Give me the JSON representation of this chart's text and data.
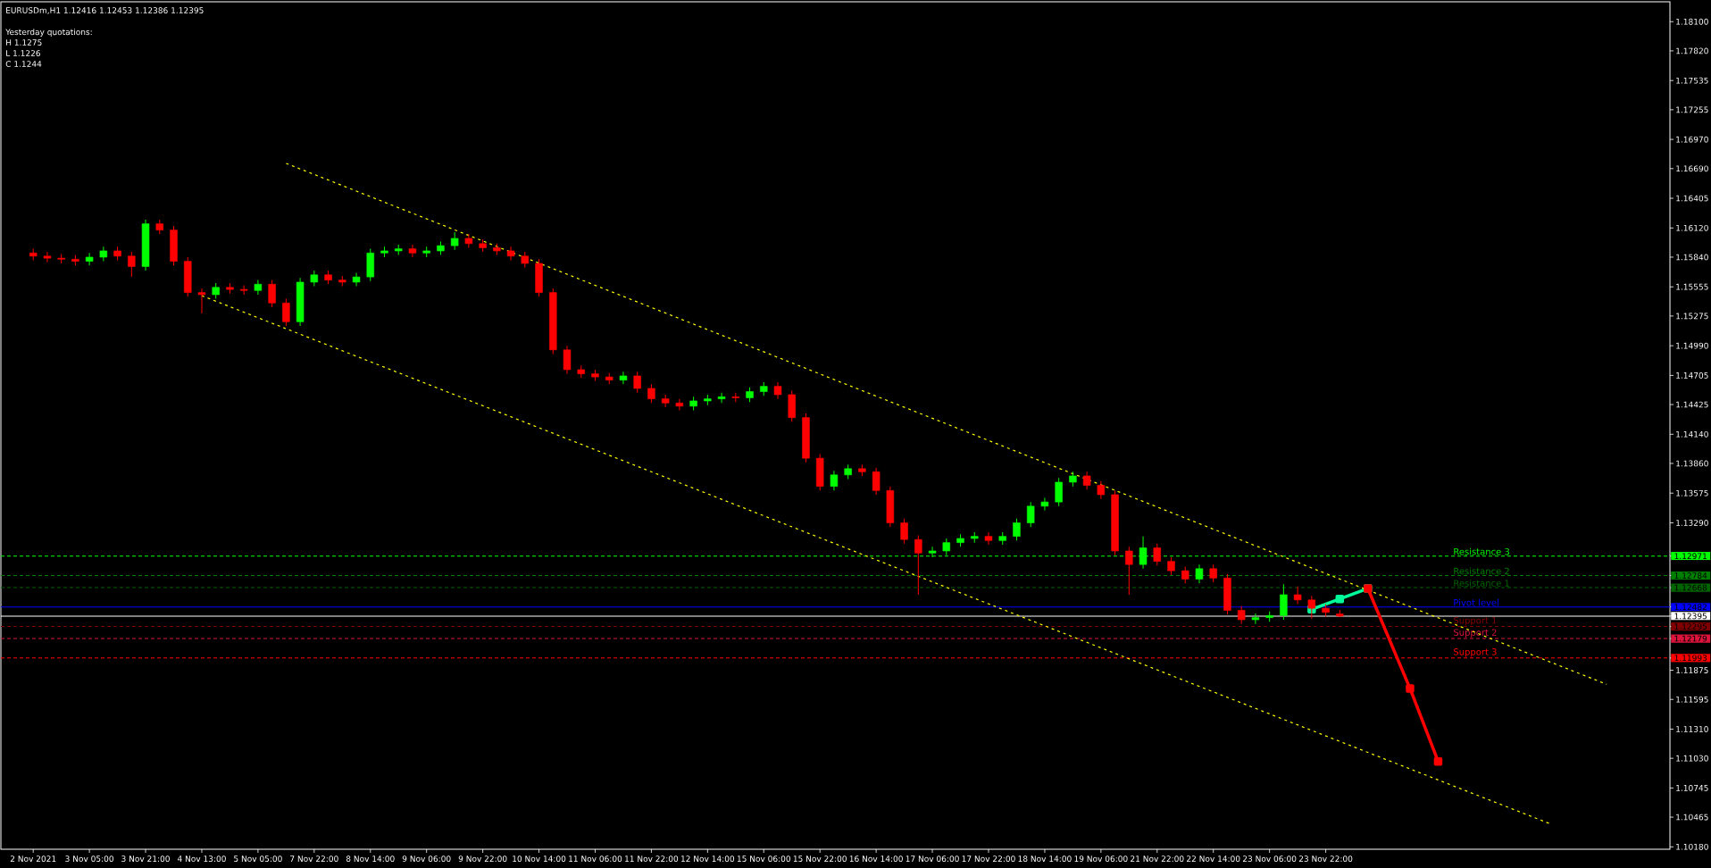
{
  "chart_data": {
    "type": "candlestick",
    "title": "EURUSDm,H1  1.12416 1.12453 1.12386 1.12395",
    "annotations": [
      "Yesterday quotations:",
      "H 1.1275",
      "L 1.1226",
      "C 1.1244"
    ],
    "categories": [
      "2 Nov 2021",
      null,
      null,
      null,
      "3 Nov 05:00",
      null,
      null,
      null,
      "3 Nov 21:00",
      null,
      null,
      null,
      "4 Nov 13:00",
      null,
      null,
      null,
      "5 Nov 05:00",
      null,
      null,
      null,
      "7 Nov 22:00",
      null,
      null,
      null,
      "8 Nov 14:00",
      null,
      null,
      null,
      "9 Nov 06:00",
      null,
      null,
      null,
      "9 Nov 22:00",
      null,
      null,
      null,
      "10 Nov 14:00",
      null,
      null,
      null,
      "11 Nov 06:00",
      null,
      null,
      null,
      "11 Nov 22:00",
      null,
      null,
      null,
      "12 Nov 14:00",
      null,
      null,
      null,
      "15 Nov 06:00",
      null,
      null,
      null,
      "15 Nov 22:00",
      null,
      null,
      null,
      "16 Nov 14:00",
      null,
      null,
      null,
      "17 Nov 06:00",
      null,
      null,
      null,
      "17 Nov 22:00",
      null,
      null,
      null,
      "18 Nov 14:00",
      null,
      null,
      null,
      "19 Nov 06:00",
      null,
      null,
      null,
      "21 Nov 22:00",
      null,
      null,
      null,
      "22 Nov 14:00",
      null,
      null,
      null,
      "23 Nov 06:00",
      null,
      null,
      null,
      "23 Nov 22:00",
      null,
      null,
      null,
      null,
      null,
      null,
      null,
      null,
      null,
      null,
      null,
      null,
      null,
      null,
      null,
      null,
      null,
      null,
      null,
      null,
      null,
      null,
      null,
      null
    ],
    "colors": [
      "#ff0000",
      "#ff0000",
      "#ff0000",
      "#ff0000",
      "#00ff00",
      "#00ff00",
      "#ff0000",
      "#ff0000",
      "#00ff00",
      "#ff0000",
      "#ff0000",
      "#ff0000",
      "#ff0000",
      "#00ff00",
      "#ff0000",
      "#ff0000",
      "#00ff00",
      "#ff0000",
      "#ff0000",
      "#00ff00",
      "#00ff00",
      "#ff0000",
      "#ff0000",
      "#00ff00",
      "#00ff00",
      "#00ff00",
      "#00ff00",
      "#ff0000",
      "#00ff00",
      "#00ff00",
      "#00ff00",
      "#ff0000",
      "#ff0000",
      "#ff0000",
      "#ff0000",
      "#ff0000",
      "#ff0000",
      "#ff0000",
      "#ff0000",
      "#ff0000",
      "#ff0000",
      "#ff0000",
      "#00ff00",
      "#ff0000",
      "#ff0000",
      "#ff0000",
      "#ff0000",
      "#00ff00",
      "#00ff00",
      "#00ff00",
      "#ff0000",
      "#00ff00",
      "#00ff00",
      "#ff0000",
      "#ff0000",
      "#ff0000",
      "#ff0000",
      "#00ff00",
      "#00ff00",
      "#ff0000",
      "#ff0000",
      "#ff0000",
      "#ff0000",
      "#ff0000",
      "#00ff00",
      "#00ff00",
      "#00ff00",
      "#00ff00",
      "#ff0000",
      "#00ff00",
      "#00ff00",
      "#00ff00",
      "#00ff00",
      "#00ff00",
      "#00ff00",
      "#ff0000",
      "#ff0000",
      "#ff0000",
      "#ff0000",
      "#00ff00",
      "#ff0000",
      "#ff0000",
      "#ff0000",
      "#00ff00",
      "#ff0000",
      "#ff0000",
      "#ff0000",
      "#00ff00",
      "#00ff00",
      "#00ff00",
      "#ff0000",
      "#ff0000",
      "#ff0000",
      "#ff0000",
      null,
      null,
      null,
      null,
      null,
      null,
      null,
      null,
      null,
      null,
      null,
      null,
      null,
      null,
      null,
      null,
      null,
      null,
      null,
      null,
      null,
      null,
      null
    ],
    "ohlc": [
      [
        1.1588,
        1.1592,
        1.1581,
        1.1585
      ],
      [
        1.1585,
        1.1589,
        1.1579,
        1.1583
      ],
      [
        1.1583,
        1.1587,
        1.1578,
        1.1582
      ],
      [
        1.1582,
        1.1586,
        1.1576,
        1.158
      ],
      [
        1.158,
        1.1588,
        1.1576,
        1.1584
      ],
      [
        1.1584,
        1.1594,
        1.158,
        1.159
      ],
      [
        1.159,
        1.1594,
        1.1581,
        1.1585
      ],
      [
        1.1585,
        1.1589,
        1.1565,
        1.1575
      ],
      [
        1.1575,
        1.162,
        1.1571,
        1.1616
      ],
      [
        1.1616,
        1.162,
        1.1606,
        1.161
      ],
      [
        1.161,
        1.1614,
        1.1576,
        1.158
      ],
      [
        1.158,
        1.1584,
        1.1546,
        1.155
      ],
      [
        1.155,
        1.1554,
        1.153,
        1.1548
      ],
      [
        1.1548,
        1.1559,
        1.1544,
        1.1555
      ],
      [
        1.1555,
        1.1559,
        1.1549,
        1.1553
      ],
      [
        1.1553,
        1.1557,
        1.1548,
        1.1552
      ],
      [
        1.1552,
        1.1562,
        1.1548,
        1.1558
      ],
      [
        1.1558,
        1.1562,
        1.1536,
        1.154
      ],
      [
        1.154,
        1.1544,
        1.1518,
        1.1522
      ],
      [
        1.1522,
        1.1564,
        1.1518,
        1.156
      ],
      [
        1.156,
        1.1571,
        1.1556,
        1.1567
      ],
      [
        1.1567,
        1.1571,
        1.1558,
        1.1562
      ],
      [
        1.1562,
        1.1566,
        1.1556,
        1.156
      ],
      [
        1.156,
        1.1569,
        1.1556,
        1.1565
      ],
      [
        1.1565,
        1.1592,
        1.1561,
        1.1588
      ],
      [
        1.1588,
        1.1594,
        1.1584,
        1.159
      ],
      [
        1.159,
        1.1596,
        1.1586,
        1.1592
      ],
      [
        1.1592,
        1.1596,
        1.1584,
        1.1588
      ],
      [
        1.1588,
        1.1594,
        1.1584,
        1.159
      ],
      [
        1.159,
        1.1599,
        1.1586,
        1.1595
      ],
      [
        1.1595,
        1.1608,
        1.1591,
        1.1602
      ],
      [
        1.1602,
        1.1606,
        1.1593,
        1.1597
      ],
      [
        1.1597,
        1.1601,
        1.1589,
        1.1593
      ],
      [
        1.1593,
        1.1597,
        1.1586,
        1.159
      ],
      [
        1.159,
        1.1594,
        1.1581,
        1.1585
      ],
      [
        1.1585,
        1.1589,
        1.1574,
        1.1578
      ],
      [
        1.1578,
        1.1582,
        1.1546,
        1.155
      ],
      [
        1.155,
        1.1554,
        1.1491,
        1.1495
      ],
      [
        1.1495,
        1.1499,
        1.1472,
        1.1476
      ],
      [
        1.1476,
        1.148,
        1.1468,
        1.1472
      ],
      [
        1.1472,
        1.1476,
        1.1465,
        1.1469
      ],
      [
        1.1469,
        1.1473,
        1.1462,
        1.1466
      ],
      [
        1.1466,
        1.1474,
        1.1462,
        1.147
      ],
      [
        1.147,
        1.1474,
        1.1454,
        1.1458
      ],
      [
        1.1458,
        1.1462,
        1.1444,
        1.1448
      ],
      [
        1.1448,
        1.1452,
        1.144,
        1.1444
      ],
      [
        1.1444,
        1.1448,
        1.1437,
        1.1441
      ],
      [
        1.1441,
        1.145,
        1.1437,
        1.1446
      ],
      [
        1.1446,
        1.1452,
        1.1442,
        1.1448
      ],
      [
        1.1448,
        1.1454,
        1.1444,
        1.145
      ],
      [
        1.145,
        1.1454,
        1.1445,
        1.1449
      ],
      [
        1.1449,
        1.1459,
        1.1445,
        1.1455
      ],
      [
        1.1455,
        1.1464,
        1.1451,
        1.146
      ],
      [
        1.146,
        1.1464,
        1.1448,
        1.1452
      ],
      [
        1.1452,
        1.1456,
        1.1426,
        1.143
      ],
      [
        1.143,
        1.1434,
        1.1387,
        1.1391
      ],
      [
        1.1391,
        1.1395,
        1.136,
        1.1364
      ],
      [
        1.1364,
        1.1379,
        1.136,
        1.1375
      ],
      [
        1.1375,
        1.1385,
        1.1371,
        1.1381
      ],
      [
        1.1381,
        1.1385,
        1.1374,
        1.1378
      ],
      [
        1.1378,
        1.1382,
        1.1356,
        1.136
      ],
      [
        1.136,
        1.1364,
        1.1325,
        1.1329
      ],
      [
        1.1329,
        1.1333,
        1.1309,
        1.1313
      ],
      [
        1.1313,
        1.1317,
        1.126,
        1.13
      ],
      [
        1.13,
        1.1306,
        1.1296,
        1.1302
      ],
      [
        1.1302,
        1.1314,
        1.1298,
        1.131
      ],
      [
        1.131,
        1.1318,
        1.1306,
        1.1314
      ],
      [
        1.1314,
        1.132,
        1.131,
        1.1316
      ],
      [
        1.1316,
        1.132,
        1.1308,
        1.1312
      ],
      [
        1.1312,
        1.132,
        1.1308,
        1.1316
      ],
      [
        1.1316,
        1.1333,
        1.1312,
        1.1329
      ],
      [
        1.1329,
        1.1349,
        1.1325,
        1.1345
      ],
      [
        1.1345,
        1.1353,
        1.1341,
        1.1349
      ],
      [
        1.1349,
        1.1372,
        1.1345,
        1.1368
      ],
      [
        1.1368,
        1.1378,
        1.1364,
        1.1374
      ],
      [
        1.1374,
        1.1378,
        1.1361,
        1.1365
      ],
      [
        1.1365,
        1.1369,
        1.1352,
        1.1356
      ],
      [
        1.1356,
        1.136,
        1.1298,
        1.1302
      ],
      [
        1.1302,
        1.1306,
        1.126,
        1.1289
      ],
      [
        1.1289,
        1.1316,
        1.1285,
        1.1305
      ],
      [
        1.1305,
        1.1309,
        1.1288,
        1.1292
      ],
      [
        1.1292,
        1.1296,
        1.1279,
        1.1283
      ],
      [
        1.1283,
        1.1287,
        1.1271,
        1.1275
      ],
      [
        1.1275,
        1.1289,
        1.1271,
        1.1285
      ],
      [
        1.1285,
        1.1289,
        1.1272,
        1.1276
      ],
      [
        1.1276,
        1.128,
        1.1241,
        1.1245
      ],
      [
        1.1245,
        1.1249,
        1.1232,
        1.1236
      ],
      [
        1.1236,
        1.1242,
        1.1232,
        1.1238
      ],
      [
        1.1238,
        1.1244,
        1.1234,
        1.124
      ],
      [
        1.124,
        1.127,
        1.1236,
        1.126
      ],
      [
        1.126,
        1.1268,
        1.1251,
        1.1255
      ],
      [
        1.1255,
        1.1259,
        1.1237,
        1.1247
      ],
      [
        1.1247,
        1.1251,
        1.1239,
        1.1243
      ],
      [
        1.12416,
        1.12453,
        1.12386,
        1.12395
      ],
      null,
      null,
      null,
      null,
      null,
      null,
      null,
      null,
      null,
      null,
      null,
      null,
      null,
      null,
      null,
      null,
      null,
      null,
      null,
      null,
      null,
      null,
      null
    ],
    "series": [
      {
        "type": "line",
        "color": "#ffff00",
        "line_style": "dotted",
        "marker": "none",
        "values": [
          null,
          null,
          null,
          null,
          null,
          null,
          null,
          null,
          null,
          null,
          null,
          null,
          null,
          null,
          null,
          null,
          null,
          null,
          1.1674,
          null,
          null,
          null,
          null,
          null,
          null,
          null,
          null,
          null,
          null,
          null,
          null,
          null,
          null,
          null,
          null,
          null,
          null,
          null,
          null,
          null,
          null,
          null,
          null,
          null,
          null,
          null,
          null,
          null,
          null,
          null,
          null,
          null,
          null,
          null,
          null,
          null,
          null,
          null,
          null,
          null,
          null,
          null,
          null,
          null,
          null,
          null,
          null,
          null,
          null,
          null,
          null,
          null,
          null,
          null,
          null,
          null,
          null,
          null,
          null,
          null,
          null,
          null,
          null,
          null,
          null,
          null,
          null,
          null,
          null,
          null,
          null,
          null,
          null,
          null,
          null,
          null,
          null,
          null,
          null,
          null,
          null,
          null,
          null,
          null,
          null,
          null,
          null,
          null,
          null,
          null,
          null,
          null,
          1.1174,
          null,
          null,
          null,
          null
        ]
      },
      {
        "type": "line",
        "color": "#ffff00",
        "line_style": "dotted",
        "marker": "none",
        "values": [
          null,
          null,
          null,
          null,
          null,
          null,
          null,
          null,
          null,
          null,
          null,
          null,
          1.1547,
          null,
          null,
          null,
          null,
          null,
          null,
          null,
          null,
          null,
          null,
          null,
          null,
          null,
          null,
          null,
          null,
          null,
          null,
          null,
          null,
          null,
          null,
          null,
          null,
          null,
          null,
          null,
          null,
          null,
          null,
          null,
          null,
          null,
          null,
          null,
          null,
          null,
          null,
          null,
          null,
          null,
          null,
          null,
          null,
          null,
          null,
          null,
          null,
          null,
          null,
          null,
          null,
          null,
          null,
          null,
          null,
          null,
          null,
          null,
          null,
          null,
          null,
          null,
          null,
          null,
          null,
          null,
          null,
          null,
          null,
          null,
          null,
          null,
          null,
          null,
          null,
          null,
          null,
          null,
          null,
          null,
          null,
          null,
          null,
          null,
          null,
          null,
          null,
          null,
          null,
          null,
          null,
          null,
          null,
          null,
          1.104,
          null,
          null,
          null,
          null,
          null,
          null,
          null,
          null
        ]
      },
      {
        "type": "line",
        "color": "#00fa9a",
        "line_style": "solid",
        "marker": "square",
        "values": [
          null,
          null,
          null,
          null,
          null,
          null,
          null,
          null,
          null,
          null,
          null,
          null,
          null,
          null,
          null,
          null,
          null,
          null,
          null,
          null,
          null,
          null,
          null,
          null,
          null,
          null,
          null,
          null,
          null,
          null,
          null,
          null,
          null,
          null,
          null,
          null,
          null,
          null,
          null,
          null,
          null,
          null,
          null,
          null,
          null,
          null,
          null,
          null,
          null,
          null,
          null,
          null,
          null,
          null,
          null,
          null,
          null,
          null,
          null,
          null,
          null,
          null,
          null,
          null,
          null,
          null,
          null,
          null,
          null,
          null,
          null,
          null,
          null,
          null,
          null,
          null,
          null,
          null,
          null,
          null,
          null,
          null,
          null,
          null,
          null,
          null,
          null,
          null,
          null,
          null,
          null,
          1.1246,
          null,
          1.1256,
          null,
          1.1266,
          null,
          null,
          null,
          null,
          null,
          null,
          null,
          null,
          null,
          null,
          null,
          null,
          null,
          null,
          null,
          null,
          null,
          null,
          null,
          null,
          null
        ]
      },
      {
        "type": "line",
        "color": "#ff0000",
        "line_style": "solid",
        "marker": "square",
        "values": [
          null,
          null,
          null,
          null,
          null,
          null,
          null,
          null,
          null,
          null,
          null,
          null,
          null,
          null,
          null,
          null,
          null,
          null,
          null,
          null,
          null,
          null,
          null,
          null,
          null,
          null,
          null,
          null,
          null,
          null,
          null,
          null,
          null,
          null,
          null,
          null,
          null,
          null,
          null,
          null,
          null,
          null,
          null,
          null,
          null,
          null,
          null,
          null,
          null,
          null,
          null,
          null,
          null,
          null,
          null,
          null,
          null,
          null,
          null,
          null,
          null,
          null,
          null,
          null,
          null,
          null,
          null,
          null,
          null,
          null,
          null,
          null,
          null,
          null,
          null,
          null,
          null,
          null,
          null,
          null,
          null,
          null,
          null,
          null,
          null,
          null,
          null,
          null,
          null,
          null,
          null,
          null,
          null,
          null,
          null,
          1.1266,
          null,
          null,
          1.117,
          null,
          1.11,
          null,
          null,
          null,
          null,
          null,
          null,
          null,
          null,
          null,
          null,
          null,
          null,
          null,
          null,
          null,
          null
        ]
      }
    ],
    "ref_lines": [
      {
        "axis": "y",
        "value": 1.12971,
        "label": "Resistance 3",
        "color": "#00ff00",
        "line_style": "dashed"
      },
      {
        "axis": "y",
        "value": 1.12784,
        "label": "Resistance 2",
        "color": "#008000",
        "line_style": "dashed"
      },
      {
        "axis": "y",
        "value": 1.12668,
        "label": "Resistance 1",
        "color": "#006400",
        "line_style": "dashed"
      },
      {
        "axis": "y",
        "value": 1.12482,
        "label": "Pivot level",
        "color": "#0000ff",
        "line_style": "solid"
      },
      {
        "axis": "y",
        "value": 1.12395,
        "color": "#ffffff",
        "line_style": "solid"
      },
      {
        "axis": "y",
        "value": 1.12295,
        "label": "Support 1",
        "color": "#800000",
        "line_style": "dashed"
      },
      {
        "axis": "y",
        "value": 1.12179,
        "label": "Support 2",
        "color": "#dc143c",
        "line_style": "dashed"
      },
      {
        "axis": "y",
        "value": 1.11993,
        "label": "Support 3",
        "color": "#ff0000",
        "line_style": "dashed"
      }
    ],
    "ylim": [
      1.10157,
      1.18291
    ],
    "yticks": [
      {
        "value": 1.181,
        "label": "1.18100"
      },
      {
        "value": 1.1782,
        "label": "1.17820"
      },
      {
        "value": 1.17535,
        "label": "1.17535"
      },
      {
        "value": 1.17255,
        "label": "1.17255"
      },
      {
        "value": 1.1697,
        "label": "1.16970"
      },
      {
        "value": 1.1669,
        "label": "1.16690"
      },
      {
        "value": 1.16405,
        "label": "1.16405"
      },
      {
        "value": 1.1612,
        "label": "1.16120"
      },
      {
        "value": 1.1584,
        "label": "1.15840"
      },
      {
        "value": 1.15555,
        "label": "1.15555"
      },
      {
        "value": 1.15275,
        "label": "1.15275"
      },
      {
        "value": 1.1499,
        "label": "1.14990"
      },
      {
        "value": 1.14705,
        "label": "1.14705"
      },
      {
        "value": 1.14425,
        "label": "1.14425"
      },
      {
        "value": 1.1414,
        "label": "1.14140"
      },
      {
        "value": 1.1386,
        "label": "1.13860"
      },
      {
        "value": 1.13575,
        "label": "1.13575"
      },
      {
        "value": 1.1329,
        "label": "1.13290"
      },
      {
        "value": 1.12971,
        "label": "1.12971"
      },
      {
        "value": 1.12784,
        "label": "1.12784"
      },
      {
        "value": 1.12668,
        "label": "1.12668"
      },
      {
        "value": 1.12482,
        "label": "1.12482"
      },
      {
        "value": 1.12395,
        "label": "1.12395"
      },
      {
        "value": 1.12295,
        "label": "1.12295"
      },
      {
        "value": 1.12179,
        "label": "1.12179"
      },
      {
        "value": 1.11993,
        "label": "1.11993"
      },
      {
        "value": 1.11875,
        "label": "1.11875"
      },
      {
        "value": 1.11595,
        "label": "1.11595"
      },
      {
        "value": 1.1131,
        "label": "1.11310"
      },
      {
        "value": 1.1103,
        "label": "1.11030"
      },
      {
        "value": 1.10745,
        "label": "1.10745"
      },
      {
        "value": 1.10465,
        "label": "1.10465"
      },
      {
        "value": 1.1018,
        "label": "1.10180"
      }
    ]
  }
}
